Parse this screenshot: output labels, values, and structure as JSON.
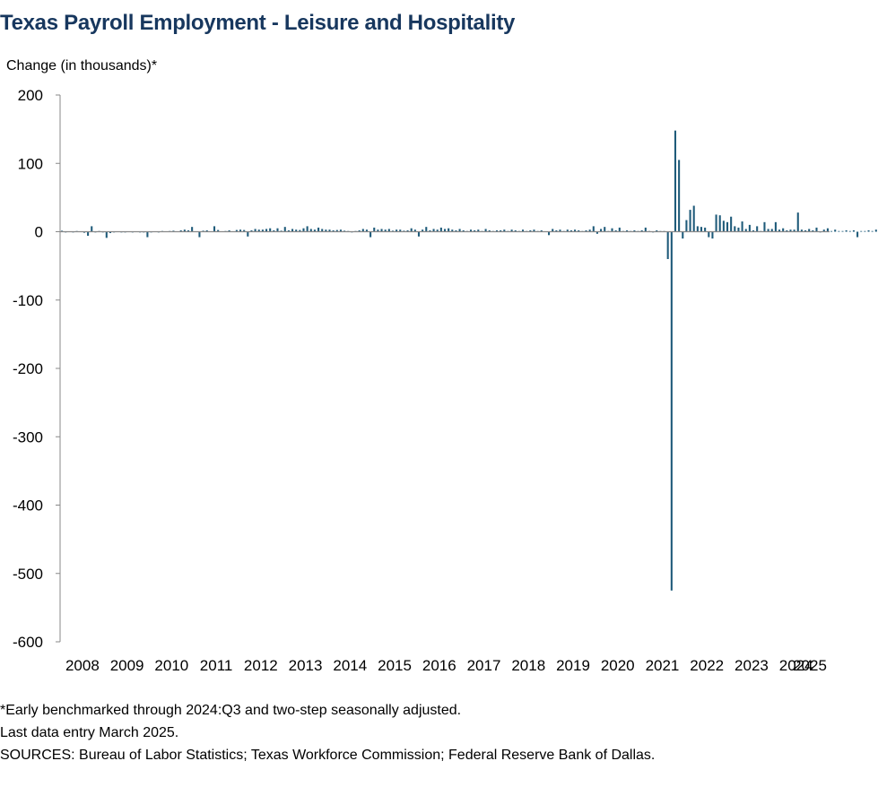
{
  "chart_data": {
    "type": "bar",
    "title": "Texas Payroll Employment - Leisure and Hospitality",
    "ylabel": "Change (in thousands)*",
    "xlabel": "",
    "ylim": [
      -600,
      200
    ],
    "yticks": [
      200,
      100,
      0,
      -100,
      -200,
      -300,
      -400,
      -500,
      -600
    ],
    "xticks": [
      "2008",
      "2009",
      "2010",
      "2011",
      "2012",
      "2013",
      "2014",
      "2015",
      "2016",
      "2017",
      "2018",
      "2019",
      "2020",
      "2021",
      "2022",
      "2023",
      "2024",
      "2025"
    ],
    "x_start": "2008-01",
    "x_end": "2025-03",
    "grid": false,
    "legend": "none",
    "bar_color": "#1F5B7A",
    "series": [
      {
        "values": [
          1.5,
          -1,
          0.5,
          -1,
          1,
          0.5,
          -1.5,
          -6,
          8,
          0,
          1,
          -1,
          -9,
          -2,
          -1,
          0.5,
          -1,
          -1,
          0.5,
          -1,
          0.5,
          -1,
          -1,
          -8,
          -1,
          0.5,
          -1,
          1,
          0.5,
          1,
          1.5,
          0.5,
          2,
          3,
          2,
          7,
          0.5,
          -8,
          1.5,
          2,
          0.5,
          8,
          2.5,
          0.5,
          1,
          2,
          0.5,
          2.5,
          3,
          2.5,
          -7,
          2,
          4,
          3,
          3,
          4,
          5,
          2,
          5,
          1.5,
          7,
          2,
          4,
          3,
          2.5,
          5,
          8,
          4,
          3,
          6,
          4,
          3,
          3,
          2,
          2.5,
          3,
          1.5,
          1,
          -1,
          1,
          2,
          4,
          3,
          -8,
          6,
          3,
          4,
          3,
          4,
          1.5,
          3,
          3,
          1.5,
          2,
          5,
          3,
          -7,
          3,
          7,
          2,
          4,
          3,
          6,
          4,
          5,
          3,
          2,
          4,
          2,
          1,
          3,
          2,
          3,
          1,
          4,
          2,
          1,
          2,
          2,
          3,
          1,
          3,
          2,
          1,
          3,
          1,
          2,
          3,
          1,
          2,
          0.5,
          -5,
          4,
          2,
          3,
          1,
          3,
          2,
          3,
          2,
          1,
          2,
          3,
          8,
          -3,
          4,
          7,
          1,
          5,
          2,
          6,
          1,
          2,
          1,
          2,
          1,
          2,
          6,
          1,
          -1,
          2,
          1,
          1,
          -40,
          -525,
          148,
          105,
          -10,
          17,
          32,
          38,
          8,
          7,
          6,
          -8,
          -10,
          25,
          24,
          16,
          14,
          22,
          8,
          6,
          15,
          4,
          10,
          2,
          8,
          1,
          14,
          4,
          4,
          14,
          3,
          5,
          2,
          3,
          3,
          28,
          3,
          2,
          4,
          2,
          6,
          -1,
          3,
          5,
          1,
          3,
          1,
          1,
          2,
          1,
          2,
          -8,
          1,
          1,
          2,
          1,
          3,
          -5,
          -7,
          8,
          2,
          1,
          5,
          2,
          1,
          -8,
          12,
          2
        ]
      }
    ]
  },
  "notes": {
    "line1": "*Early benchmarked through 2024:Q3  and two-step seasonally adjusted.",
    "line2": "Last data entry March 2025.",
    "line3": "SOURCES:  Bureau of Labor Statistics;  Texas Workforce Commission;  Federal Reserve Bank of Dallas."
  }
}
